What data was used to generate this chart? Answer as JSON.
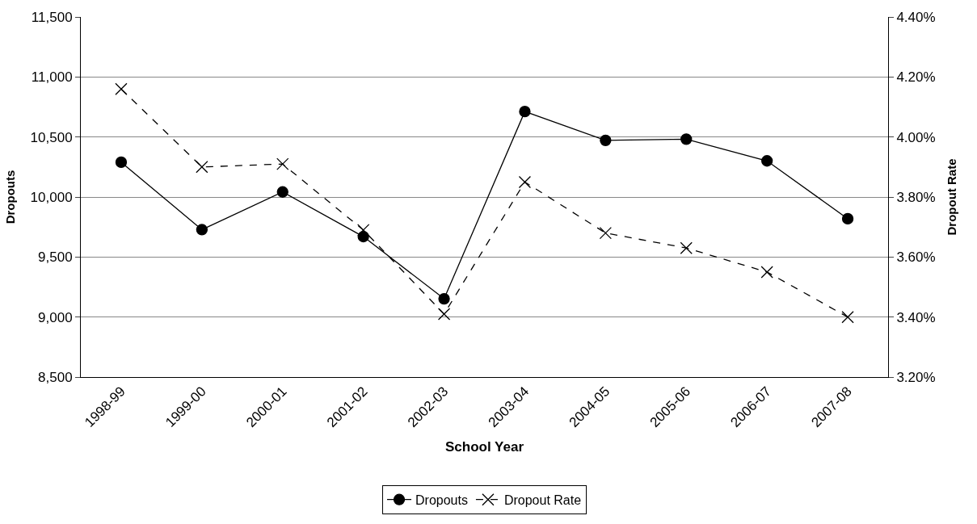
{
  "chart_data": {
    "type": "line",
    "xlabel": "School Year",
    "ylabel": "Dropouts",
    "y2label": "Dropout Rate",
    "categories": [
      "1998-99",
      "1999-00",
      "2000-01",
      "2001-02",
      "2002-03",
      "2003-04",
      "2004-05",
      "2005-06",
      "2006-07",
      "2007-08"
    ],
    "series": [
      {
        "name": "Dropouts",
        "color": "#000000",
        "marker": "circle",
        "line_style": "solid",
        "values": [
          10290,
          9728,
          10042,
          9670,
          9152,
          10712,
          10472,
          10482,
          10301,
          9819
        ]
      },
      {
        "name": "Dropout Rate",
        "color": "#000000",
        "marker": "cross",
        "line_style": "dashed",
        "axis": "y2",
        "values": [
          4.16,
          3.9,
          3.91,
          3.69,
          3.41,
          3.85,
          3.68,
          3.63,
          3.55,
          3.4
        ]
      }
    ],
    "ylim": [
      8500,
      11500
    ],
    "yticks": [
      {
        "value": 8500,
        "label": "8,500"
      },
      {
        "value": 9000,
        "label": "9,000"
      },
      {
        "value": 9500,
        "label": "9,500"
      },
      {
        "value": 10000,
        "label": "10,000"
      },
      {
        "value": 10500,
        "label": "10,500"
      },
      {
        "value": 11000,
        "label": "11,000"
      },
      {
        "value": 11500,
        "label": "11,500"
      }
    ],
    "y2lim": [
      3.2,
      4.4
    ],
    "y2ticks": [
      {
        "value": 3.2,
        "label": "3.20%"
      },
      {
        "value": 3.4,
        "label": "3.40%"
      },
      {
        "value": 3.6,
        "label": "3.60%"
      },
      {
        "value": 3.8,
        "label": "3.80%"
      },
      {
        "value": 4.0,
        "label": "4.00%"
      },
      {
        "value": 4.2,
        "label": "4.20%"
      },
      {
        "value": 4.4,
        "label": "4.40%"
      }
    ],
    "grid": "y",
    "legend": "bottom"
  }
}
